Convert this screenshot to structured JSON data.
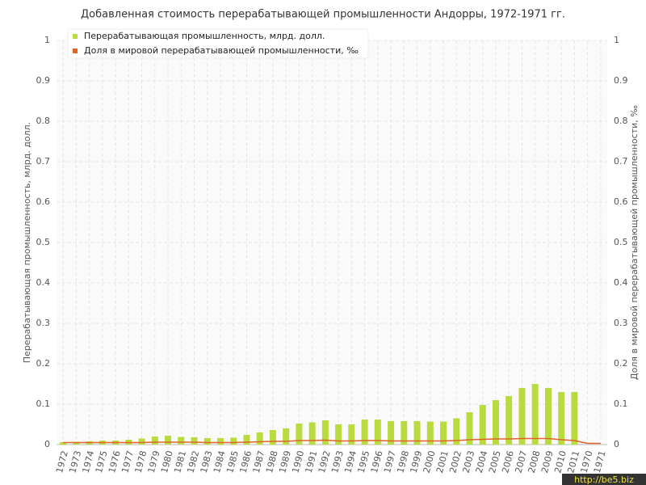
{
  "chart_data": {
    "type": "bar-line",
    "title": "Добавленная стоимость перерабатывающей промышленности Андорры, 1972-1971 гг.",
    "y_label": "Перерабатывающая промышленность, млрд. долл.",
    "y2_label": "Доля в мировой перерабатывающей промышленности, ‰",
    "watermark": "http://be5.biz",
    "categories": [
      "1972",
      "1973",
      "1974",
      "1975",
      "1976",
      "1977",
      "1978",
      "1979",
      "1980",
      "1981",
      "1982",
      "1983",
      "1984",
      "1985",
      "1986",
      "1987",
      "1988",
      "1989",
      "1990",
      "1991",
      "1992",
      "1993",
      "1994",
      "1995",
      "1996",
      "1997",
      "1998",
      "1999",
      "2000",
      "2001",
      "2002",
      "2003",
      "2004",
      "2005",
      "2006",
      "2007",
      "2008",
      "2009",
      "2010",
      "2011",
      "1970",
      "1971"
    ],
    "series": [
      {
        "name": "Перерабатывающая промышленность, млрд. долл.",
        "color": "#b8dc3e",
        "kind": "bar",
        "values": [
          0.006,
          0.007,
          0.008,
          0.01,
          0.01,
          0.012,
          0.015,
          0.02,
          0.022,
          0.019,
          0.018,
          0.016,
          0.016,
          0.017,
          0.024,
          0.03,
          0.036,
          0.04,
          0.052,
          0.055,
          0.06,
          0.05,
          0.05,
          0.062,
          0.062,
          0.058,
          0.058,
          0.058,
          0.057,
          0.057,
          0.065,
          0.08,
          0.098,
          0.11,
          0.12,
          0.14,
          0.15,
          0.14,
          0.13,
          0.13,
          null,
          null
        ]
      },
      {
        "name": "Доля в мировой перерабатывающей промышленности, ‰",
        "color": "#e0632a",
        "kind": "line",
        "axis": "y2",
        "values": [
          0.005,
          0.005,
          0.005,
          0.005,
          0.005,
          0.005,
          0.005,
          0.006,
          0.006,
          0.006,
          0.006,
          0.005,
          0.005,
          0.005,
          0.006,
          0.007,
          0.008,
          0.008,
          0.01,
          0.01,
          0.011,
          0.009,
          0.009,
          0.01,
          0.01,
          0.009,
          0.009,
          0.009,
          0.009,
          0.009,
          0.01,
          0.012,
          0.013,
          0.014,
          0.014,
          0.015,
          0.015,
          0.015,
          0.012,
          0.01,
          0.003,
          0.003
        ]
      }
    ],
    "ylim": [
      0,
      1
    ],
    "yticks": [
      0,
      0.1,
      0.2,
      0.3,
      0.4,
      0.5,
      0.6,
      0.7,
      0.8,
      0.9,
      1
    ],
    "y2lim": [
      0,
      1
    ],
    "y2ticks": [
      0,
      0.1,
      0.2,
      0.3,
      0.4,
      0.5,
      0.6,
      0.7,
      0.8,
      0.9,
      1
    ],
    "grid": true,
    "legend": "top-left"
  }
}
